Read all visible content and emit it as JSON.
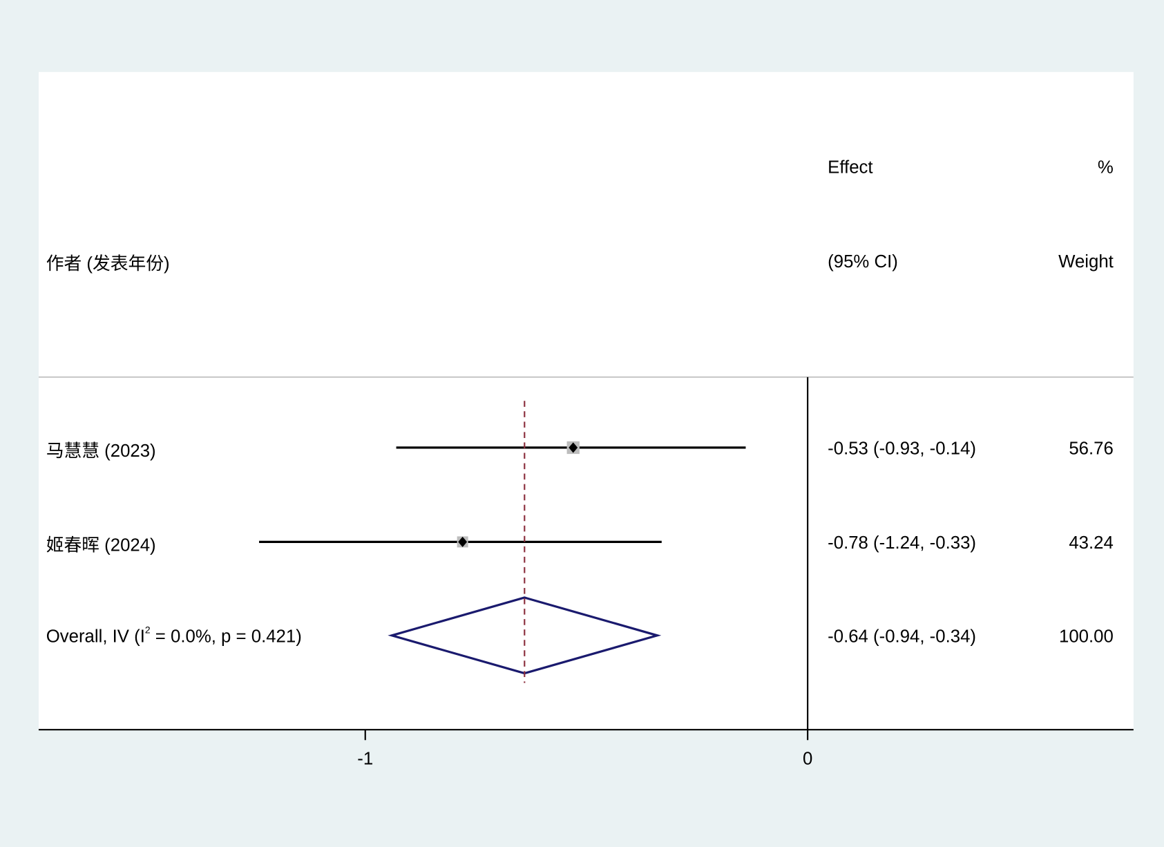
{
  "chart_data": {
    "type": "forest",
    "header": {
      "study_label": "作者 (发表年份)",
      "effect_label_1": "Effect",
      "effect_label_2": "(95% CI)",
      "weight_label_1": "%",
      "weight_label_2": "Weight"
    },
    "studies": [
      {
        "label": "马慧慧 (2023)",
        "effect": -0.53,
        "lower": -0.93,
        "upper": -0.14,
        "effect_text": "-0.53 (-0.93, -0.14)",
        "weight": 56.76,
        "weight_text": "56.76"
      },
      {
        "label": "姬春晖 (2024)",
        "effect": -0.78,
        "lower": -1.24,
        "upper": -0.33,
        "effect_text": "-0.78 (-1.24, -0.33)",
        "weight": 43.24,
        "weight_text": "43.24"
      }
    ],
    "overall": {
      "label_prefix": "Overall, IV (I",
      "label_sup": "2",
      "label_suffix": " = 0.0%, p = 0.421)",
      "effect": -0.64,
      "lower": -0.94,
      "upper": -0.34,
      "effect_text": "-0.64 (-0.94, -0.34)",
      "weight_text": "100.00"
    },
    "x_ticks": [
      {
        "value": -1,
        "label": "-1"
      },
      {
        "value": 0,
        "label": "0"
      }
    ],
    "null_line": 0,
    "colors": {
      "background": "#eaf2f3",
      "panel": "#ffffff",
      "diamond": "#1a1a6e",
      "overall_line": "#8b2e3c",
      "weight_box": "#bdbdbd"
    }
  }
}
